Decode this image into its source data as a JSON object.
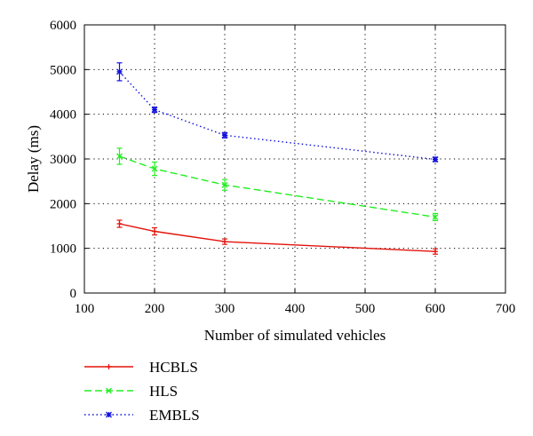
{
  "chart_data": {
    "type": "line",
    "xlabel": "Number of simulated vehicles",
    "ylabel": "Delay (ms)",
    "xlim": [
      100,
      700
    ],
    "ylim": [
      0,
      6000
    ],
    "xticks": [
      100,
      200,
      300,
      400,
      500,
      600,
      700
    ],
    "yticks": [
      0,
      1000,
      2000,
      3000,
      4000,
      5000,
      6000
    ],
    "grid": true,
    "legend_position": "bottom-left, below the plot",
    "x": [
      150,
      200,
      300,
      600
    ],
    "series": [
      {
        "name": "HCBLS",
        "values": [
          1550,
          1380,
          1150,
          930
        ],
        "errors": [
          80,
          80,
          60,
          60
        ],
        "color": "#e3120b",
        "line_style": "solid",
        "marker": "plus"
      },
      {
        "name": "HLS",
        "values": [
          3060,
          2780,
          2420,
          1700
        ],
        "errors": [
          180,
          150,
          120,
          80
        ],
        "color": "#22ee22",
        "line_style": "dashed",
        "marker": "cross"
      },
      {
        "name": "EMBLS",
        "values": [
          4950,
          4100,
          3530,
          2990
        ],
        "errors": [
          200,
          60,
          60,
          50
        ],
        "color": "#1010dd",
        "line_style": "dotted",
        "marker": "asterisk"
      }
    ]
  }
}
